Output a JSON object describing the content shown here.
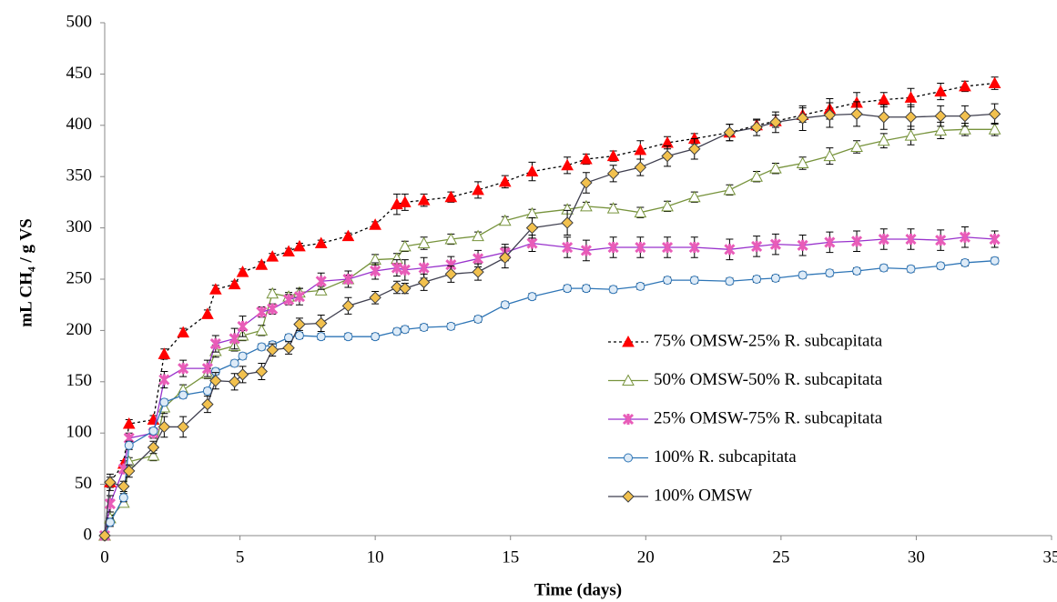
{
  "chart_data": {
    "type": "line",
    "xlabel": "Time (days)",
    "ylabel": "mL CH₄ / g VS",
    "xlim": [
      0,
      35
    ],
    "xticks": [
      0,
      5,
      10,
      15,
      20,
      25,
      30,
      35
    ],
    "ylim": [
      0,
      500
    ],
    "yticks": [
      0,
      50,
      100,
      150,
      200,
      250,
      300,
      350,
      400,
      450,
      500
    ],
    "grid": false,
    "legend": "center-right",
    "x": [
      0,
      0.2,
      0.7,
      0.9,
      1.8,
      2.2,
      2.9,
      3.8,
      4.1,
      4.8,
      5.1,
      5.8,
      6.2,
      6.8,
      7.2,
      8,
      9,
      10,
      10.8,
      11.1,
      11.8,
      12.8,
      13.8,
      14.8,
      15.8,
      17.1,
      17.8,
      18.8,
      19.8,
      20.8,
      21.8,
      23.1,
      24.1,
      24.8,
      25.8,
      26.8,
      27.8,
      28.8,
      29.8,
      30.9,
      31.8,
      32.9
    ],
    "series": [
      {
        "name": "75% OMSW-25% R. subcapitata",
        "color": "#000000",
        "dash": true,
        "marker": "triangle",
        "marker_color": "#ff0000",
        "marker_fill": "#ff0000",
        "values": [
          0,
          52,
          70,
          109,
          113,
          177,
          198,
          216,
          240,
          245,
          257,
          264,
          272,
          277,
          282,
          285,
          292,
          303,
          323,
          325,
          327,
          330,
          337,
          345,
          355,
          361,
          367,
          370,
          376,
          383,
          387,
          393,
          400,
          404,
          410,
          416,
          422,
          425,
          427,
          433,
          438,
          441
        ],
        "errors": [
          0,
          5,
          3,
          4,
          4,
          5,
          4,
          4,
          4,
          3,
          3,
          3,
          3,
          3,
          3,
          3,
          3,
          3,
          10,
          8,
          6,
          5,
          8,
          6,
          9,
          8,
          5,
          5,
          9,
          6,
          5,
          8,
          5,
          6,
          7,
          10,
          10,
          7,
          9,
          8,
          5,
          6
        ]
      },
      {
        "name": "50% OMSW-50% R. subcapitata",
        "color": "#77933c",
        "dash": false,
        "marker": "triangle",
        "marker_color": "#77933c",
        "marker_fill": "#ffffff",
        "values": [
          0,
          17,
          32,
          72,
          78,
          125,
          142,
          158,
          180,
          185,
          195,
          200,
          236,
          233,
          237,
          239,
          250,
          269,
          270,
          282,
          285,
          289,
          292,
          307,
          314,
          318,
          321,
          319,
          315,
          321,
          330,
          337,
          350,
          358,
          363,
          370,
          379,
          385,
          390,
          395,
          396,
          396
        ],
        "errors": [
          0,
          3,
          3,
          4,
          5,
          6,
          5,
          5,
          6,
          5,
          5,
          5,
          4,
          4,
          4,
          4,
          4,
          5,
          5,
          5,
          6,
          5,
          4,
          4,
          4,
          4,
          4,
          4,
          5,
          5,
          5,
          5,
          5,
          5,
          6,
          8,
          6,
          7,
          9,
          8,
          6,
          6
        ]
      },
      {
        "name": "25% OMSW-75% R. subcapitata",
        "color": "#9932cc",
        "dash": false,
        "marker": "star",
        "marker_color": "#e85cb8",
        "marker_fill": "#e85cb8",
        "values": [
          0,
          31,
          65,
          95,
          100,
          152,
          163,
          163,
          187,
          192,
          204,
          218,
          221,
          230,
          233,
          248,
          250,
          258,
          261,
          259,
          261,
          264,
          270,
          276,
          285,
          281,
          278,
          281,
          281,
          281,
          281,
          279,
          282,
          284,
          283,
          286,
          287,
          289,
          289,
          288,
          291,
          289
        ],
        "errors": [
          0,
          8,
          0,
          5,
          5,
          8,
          8,
          8,
          8,
          10,
          10,
          5,
          5,
          5,
          8,
          8,
          8,
          8,
          8,
          10,
          10,
          8,
          8,
          8,
          8,
          10,
          10,
          10,
          10,
          10,
          10,
          10,
          10,
          10,
          10,
          10,
          10,
          10,
          10,
          10,
          10,
          8
        ]
      },
      {
        "name": "100% R. subcapitata",
        "color": "#2e75b6",
        "dash": false,
        "marker": "circle",
        "marker_color": "#2e75b6",
        "marker_fill": "#deebf7",
        "values": [
          0,
          13,
          37,
          88,
          102,
          130,
          137,
          141,
          160,
          168,
          175,
          184,
          186,
          193,
          195,
          194,
          194,
          194,
          199,
          201,
          203,
          204,
          211,
          225,
          233,
          241,
          241,
          240,
          243,
          249,
          249,
          248,
          250,
          251,
          254,
          256,
          258,
          261,
          260,
          263,
          266,
          268
        ],
        "errors": [
          0,
          4,
          4,
          4,
          3,
          3,
          3,
          3,
          3,
          3,
          3,
          3,
          3,
          3,
          3,
          3,
          3,
          3,
          3,
          3,
          3,
          3,
          3,
          3,
          3,
          3,
          3,
          3,
          3,
          3,
          3,
          3,
          3,
          3,
          3,
          3,
          3,
          3,
          3,
          3,
          3,
          3
        ]
      },
      {
        "name": "100% OMSW",
        "color": "#3f3f4f",
        "dash": false,
        "marker": "diamond",
        "marker_color": "#3f3f3f",
        "marker_fill": "#f2c14e",
        "values": [
          0,
          52,
          48,
          63,
          86,
          106,
          106,
          128,
          151,
          150,
          157,
          160,
          181,
          183,
          206,
          207,
          224,
          232,
          242,
          241,
          247,
          255,
          257,
          271,
          300,
          305,
          344,
          353,
          359,
          370,
          377,
          393,
          398,
          403,
          407,
          410,
          411,
          408,
          408,
          409,
          409,
          411
        ],
        "errors": [
          0,
          8,
          5,
          6,
          6,
          10,
          10,
          8,
          8,
          8,
          8,
          8,
          6,
          6,
          6,
          8,
          8,
          6,
          6,
          5,
          8,
          8,
          8,
          10,
          10,
          12,
          10,
          8,
          8,
          10,
          10,
          8,
          8,
          10,
          12,
          12,
          12,
          12,
          12,
          10,
          10,
          10
        ]
      }
    ]
  }
}
